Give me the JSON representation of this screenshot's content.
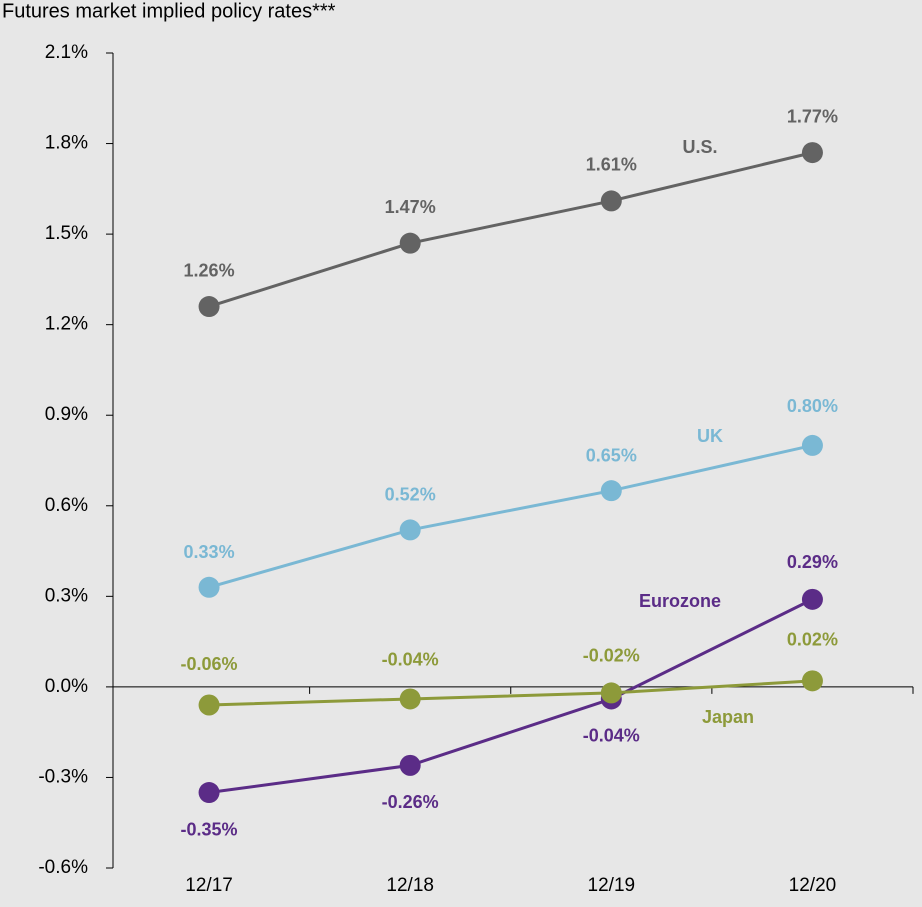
{
  "chart_data": {
    "type": "line",
    "subtitle": "Futures market implied policy rates***",
    "categories": [
      "12/17",
      "12/18",
      "12/19",
      "12/20"
    ],
    "ylim": [
      -0.6,
      2.1
    ],
    "yticks": [
      {
        "value": -0.6,
        "label": "-0.6%"
      },
      {
        "value": -0.3,
        "label": "-0.3%"
      },
      {
        "value": 0,
        "label": "0.0%"
      },
      {
        "value": 0.3,
        "label": "0.3%"
      },
      {
        "value": 0.6,
        "label": "0.6%"
      },
      {
        "value": 0.9,
        "label": "0.9%"
      },
      {
        "value": 1.2,
        "label": "1.2%"
      },
      {
        "value": 1.5,
        "label": "1.5%"
      },
      {
        "value": 1.8,
        "label": "1.8%"
      },
      {
        "value": 2.1,
        "label": "2.1%"
      }
    ],
    "series": [
      {
        "name": "U.S.",
        "color": "#636363",
        "values": [
          1.26,
          1.47,
          1.61,
          1.77
        ],
        "value_labels": [
          "1.26%",
          "1.47%",
          "1.61%",
          "1.77%"
        ]
      },
      {
        "name": "UK",
        "color": "#7ab8d4",
        "values": [
          0.33,
          0.52,
          0.65,
          0.8
        ],
        "value_labels": [
          "0.33%",
          "0.52%",
          "0.65%",
          "0.80%"
        ]
      },
      {
        "name": "Eurozone",
        "color": "#5b2c87",
        "values": [
          -0.35,
          -0.26,
          -0.04,
          0.29
        ],
        "value_labels": [
          "-0.35%",
          "-0.26%",
          "-0.04%",
          "0.29%"
        ]
      },
      {
        "name": "Japan",
        "color": "#8d9a3a",
        "values": [
          -0.06,
          -0.04,
          -0.02,
          0.02
        ],
        "value_labels": [
          "-0.06%",
          "-0.04%",
          "-0.02%",
          "0.02%"
        ]
      }
    ]
  }
}
